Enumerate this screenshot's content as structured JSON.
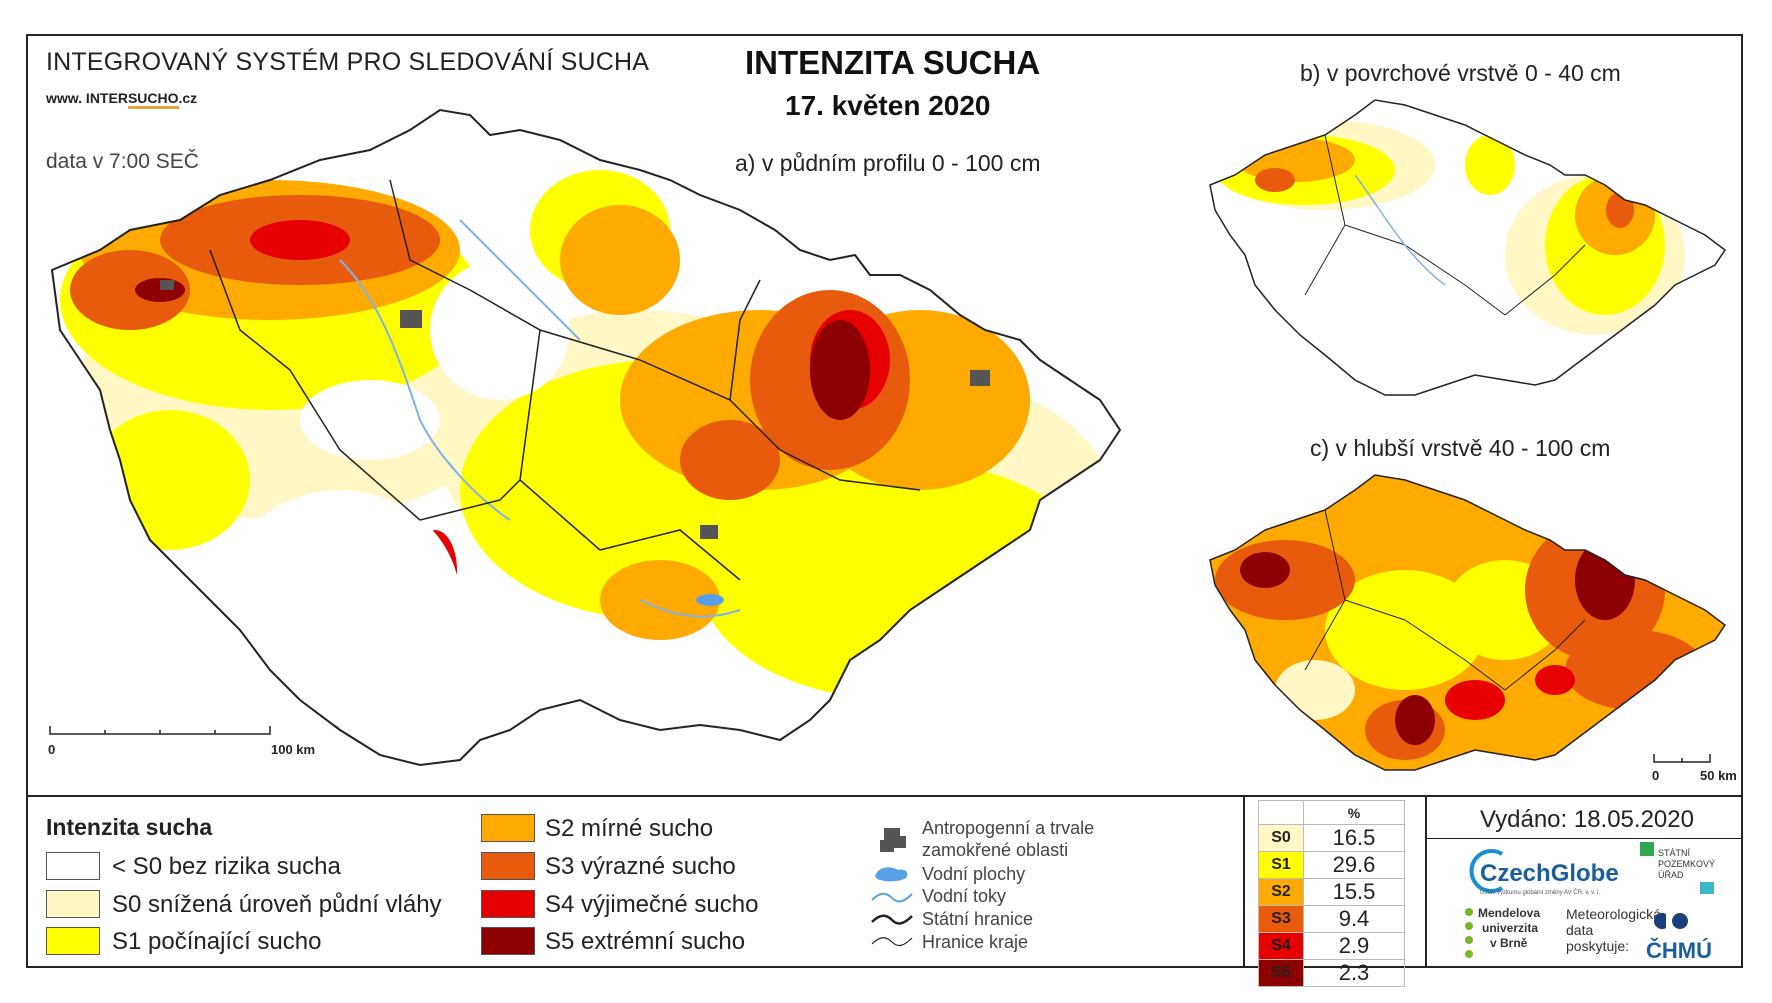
{
  "header": {
    "system_name": "INTEGROVANÝ SYSTÉM PRO SLEDOVÁNÍ SUCHA",
    "website_prefix": "www. INTER",
    "website_mid": "SUCHO",
    "website_suffix": ".cz",
    "data_time": "data v 7:00 SEČ",
    "title": "INTENZITA SUCHA",
    "date": "17. květen 2020"
  },
  "maps": {
    "a_label": "a) v půdním profilu 0 - 100 cm",
    "b_label": "b) v povrchové vrstvě 0 - 40 cm",
    "c_label": "c) v hlubší vrstvě 40 - 100 cm",
    "scale_main": {
      "zero": "0",
      "end": "100 km"
    },
    "scale_small": {
      "zero": "0",
      "end": "50 km"
    }
  },
  "legend": {
    "title": "Intenzita sucha",
    "classes": [
      {
        "label": "< S0 bez rizika sucha",
        "color": "#ffffff"
      },
      {
        "label": "S0 snížená úroveň půdní vláhy",
        "color": "#fff8c4"
      },
      {
        "label": "S1 počínající sucho",
        "color": "#ffff00"
      },
      {
        "label": "S2 mírné sucho",
        "color": "#ffaa00"
      },
      {
        "label": "S3 výrazné sucho",
        "color": "#e85a0c"
      },
      {
        "label": "S4 výjimečné sucho",
        "color": "#e60000"
      },
      {
        "label": "S5 extrémní sucho",
        "color": "#8c0000"
      }
    ],
    "symbols": {
      "anthropogenic_line1": "Antropogenní a trvale",
      "anthropogenic_line2": "zamokřené oblasti",
      "water_bodies": "Vodní plochy",
      "streams": "Vodní toky",
      "state_border": "Státní hranice",
      "region_border": "Hranice kraje"
    }
  },
  "stats": {
    "header": "%",
    "rows": [
      {
        "code": "S0",
        "value": "16.5",
        "color": "#fff8c4"
      },
      {
        "code": "S1",
        "value": "29.6",
        "color": "#ffff00"
      },
      {
        "code": "S2",
        "value": "15.5",
        "color": "#ffaa00"
      },
      {
        "code": "S3",
        "value": "9.4",
        "color": "#e85a0c"
      },
      {
        "code": "S4",
        "value": "2.9",
        "color": "#e60000"
      },
      {
        "code": "S5",
        "value": "2.3",
        "color": "#8c0000"
      }
    ]
  },
  "footer": {
    "issued": "Vydáno: 18.05.2020",
    "czechglobe": "CzechGlobe",
    "czechglobe_sub": "Ústav výzkumu globální změny AV ČR, v. v. i.",
    "mendel_l1": "Mendelova",
    "mendel_l2": "univerzita",
    "mendel_l3": "v Brně",
    "spu_l1": "STÁTNÍ",
    "spu_l2": "POZEMKOVÝ",
    "spu_l3": "ÚŘAD",
    "met_text": "Meteorologická data poskytuje:",
    "chmu": "ČHMÚ"
  }
}
